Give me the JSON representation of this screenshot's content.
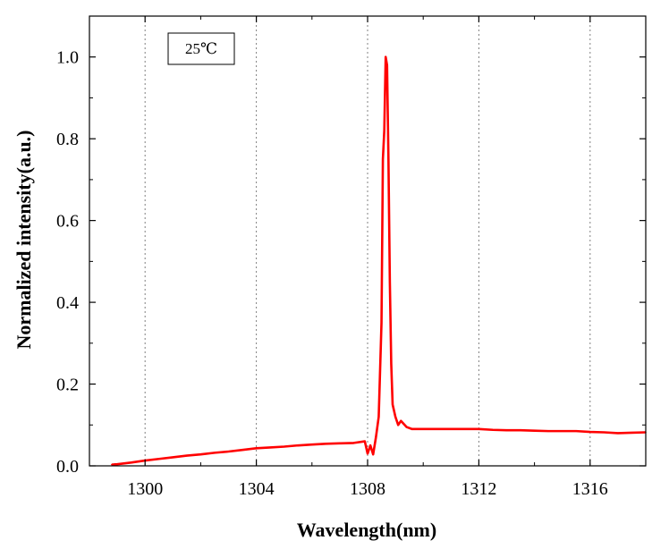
{
  "chart_data": {
    "type": "line",
    "title": "",
    "xlabel": "Wavelength(nm)",
    "ylabel": "Normalized intensity(a.u.)",
    "xlim": [
      1298,
      1318
    ],
    "ylim": [
      0,
      1.1
    ],
    "xticks": [
      1300,
      1304,
      1308,
      1312,
      1316
    ],
    "yticks": [
      0.0,
      0.2,
      0.4,
      0.6,
      0.8,
      1.0
    ],
    "xtick_labels": [
      "1300",
      "1304",
      "1308",
      "1312",
      "1316"
    ],
    "ytick_labels": [
      "0.0",
      "0.2",
      "0.4",
      "0.6",
      "0.8",
      "1.0"
    ],
    "grid": "vertical dotted at x ticks",
    "annotation": "25℃",
    "line_color": "#ff0000",
    "series": [
      {
        "name": "25℃",
        "x": [
          1298.8,
          1299.0,
          1299.5,
          1300.0,
          1300.5,
          1301.0,
          1301.5,
          1302.0,
          1302.5,
          1303.0,
          1303.5,
          1304.0,
          1304.5,
          1305.0,
          1305.5,
          1306.0,
          1306.5,
          1307.0,
          1307.5,
          1307.9,
          1308.0,
          1308.1,
          1308.2,
          1308.3,
          1308.4,
          1308.5,
          1308.55,
          1308.6,
          1308.65,
          1308.7,
          1308.75,
          1308.8,
          1308.85,
          1308.9,
          1309.0,
          1309.1,
          1309.2,
          1309.4,
          1309.6,
          1310.0,
          1310.5,
          1311.0,
          1311.5,
          1312.0,
          1312.5,
          1313.0,
          1313.5,
          1314.0,
          1314.5,
          1315.0,
          1315.5,
          1316.0,
          1316.5,
          1317.0,
          1317.5,
          1318.0
        ],
        "y": [
          0.003,
          0.004,
          0.008,
          0.013,
          0.017,
          0.021,
          0.025,
          0.028,
          0.032,
          0.035,
          0.039,
          0.043,
          0.045,
          0.047,
          0.05,
          0.052,
          0.054,
          0.055,
          0.056,
          0.06,
          0.03,
          0.05,
          0.028,
          0.07,
          0.12,
          0.35,
          0.75,
          0.82,
          1.0,
          0.98,
          0.75,
          0.45,
          0.25,
          0.15,
          0.12,
          0.1,
          0.11,
          0.095,
          0.09,
          0.09,
          0.09,
          0.09,
          0.09,
          0.09,
          0.088,
          0.087,
          0.087,
          0.086,
          0.085,
          0.085,
          0.085,
          0.083,
          0.082,
          0.08,
          0.081,
          0.082
        ]
      }
    ]
  }
}
